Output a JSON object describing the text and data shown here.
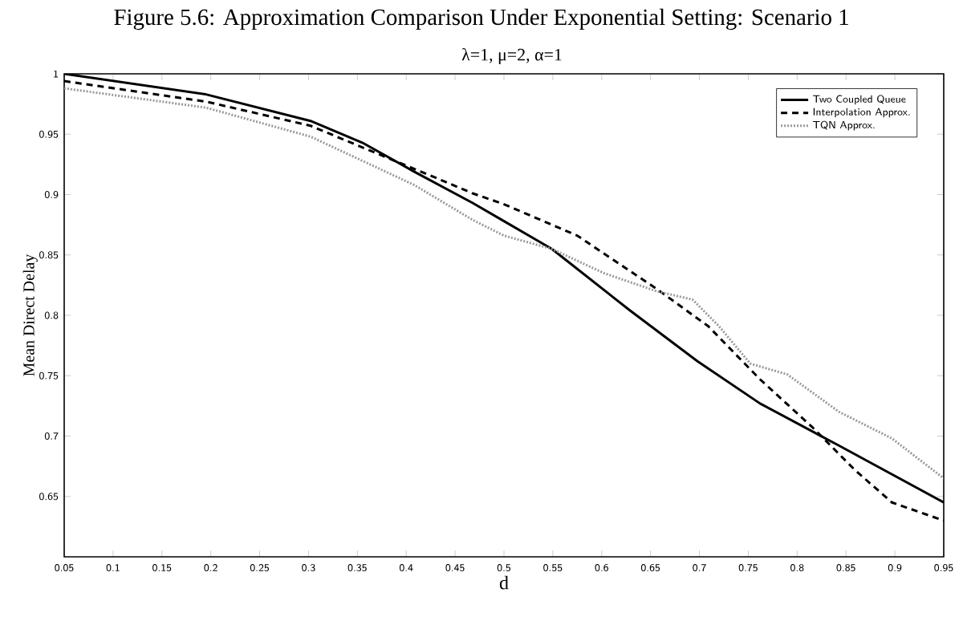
{
  "chart_data": {
    "type": "line",
    "title": "Figure 5.6: Approximation Comparison Under Exponential Setting: Scenario 1",
    "subtitle": "λ=1, μ=2, α=1",
    "xlabel": "d",
    "ylabel": "Mean Direct Delay",
    "xlim": [
      0.05,
      0.95
    ],
    "ylim": [
      0.6,
      1
    ],
    "xticks": [
      0.05,
      0.1,
      0.15,
      0.2,
      0.25,
      0.3,
      0.35,
      0.4,
      0.45,
      0.5,
      0.55,
      0.6,
      0.65,
      0.7,
      0.75,
      0.8,
      0.85,
      0.9,
      0.95
    ],
    "yticks": [
      0.65,
      0.7,
      0.75,
      0.8,
      0.85,
      0.9,
      0.95,
      1
    ],
    "grid": false,
    "legend": "top right",
    "marker": "none",
    "series": [
      {
        "name": "Two Coupled Queue",
        "color": "#000000",
        "line_style": "solid",
        "x": [
          0.05,
          0.195,
          0.302,
          0.355,
          0.408,
          0.468,
          0.5,
          0.549,
          0.629,
          0.698,
          0.762,
          0.843,
          0.95
        ],
        "values": [
          1.0,
          0.983,
          0.961,
          0.943,
          0.919,
          0.893,
          0.878,
          0.855,
          0.804,
          0.762,
          0.727,
          0.692,
          0.645
        ]
      },
      {
        "name": "Interpolation Approx.",
        "color": "#000000",
        "line_style": "dashed",
        "x": [
          0.05,
          0.195,
          0.302,
          0.388,
          0.43,
          0.468,
          0.5,
          0.575,
          0.656,
          0.709,
          0.762,
          0.816,
          0.859,
          0.897,
          0.95
        ],
        "values": [
          0.994,
          0.977,
          0.957,
          0.928,
          0.914,
          0.901,
          0.892,
          0.866,
          0.822,
          0.791,
          0.747,
          0.707,
          0.672,
          0.645,
          0.63
        ]
      },
      {
        "name": "TQN Approx.",
        "color": "#999999",
        "line_style": "dotted",
        "x": [
          0.05,
          0.195,
          0.302,
          0.408,
          0.468,
          0.5,
          0.549,
          0.602,
          0.656,
          0.693,
          0.72,
          0.752,
          0.79,
          0.843,
          0.897,
          0.95
        ],
        "values": [
          0.988,
          0.972,
          0.948,
          0.908,
          0.879,
          0.866,
          0.855,
          0.835,
          0.82,
          0.813,
          0.791,
          0.76,
          0.751,
          0.72,
          0.698,
          0.665
        ]
      }
    ]
  }
}
